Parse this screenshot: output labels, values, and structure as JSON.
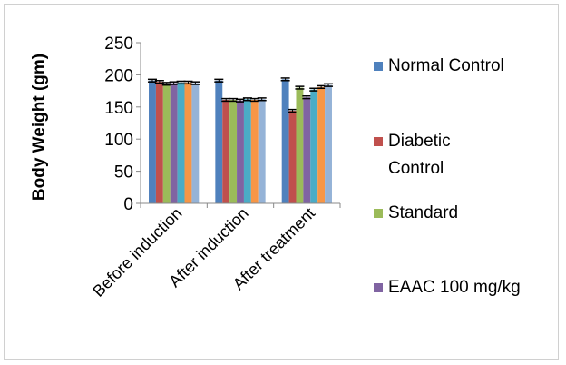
{
  "chart_data": {
    "type": "bar",
    "ylabel": "Body Weight (gm)",
    "ylim": [
      0,
      250
    ],
    "yticks": [
      0,
      50,
      100,
      150,
      200,
      250
    ],
    "categories": [
      "Before induction",
      "After induction",
      "After treatment"
    ],
    "legend_position": "right",
    "series": [
      {
        "name": "Normal Control",
        "color": "#4f81bd",
        "values": [
          191,
          191,
          193
        ],
        "errors": [
          2,
          2,
          2
        ]
      },
      {
        "name": "Diabetic Control",
        "color": "#c0504d",
        "values": [
          189,
          161,
          144
        ],
        "errors": [
          2,
          2,
          2
        ]
      },
      {
        "name": "Standard",
        "color": "#9bbb59",
        "values": [
          186,
          161,
          180
        ],
        "errors": [
          2,
          2,
          2
        ]
      },
      {
        "name": "EAAC 100 mg/kg",
        "color": "#8064a2",
        "values": [
          187,
          160,
          165
        ],
        "errors": [
          2,
          2,
          2
        ]
      },
      {
        "name": "",
        "color": "#4bacc6",
        "values": [
          188,
          162,
          177
        ],
        "errors": [
          2,
          2,
          2
        ]
      },
      {
        "name": "",
        "color": "#f79646",
        "values": [
          188,
          161,
          181
        ],
        "errors": [
          2,
          2,
          2
        ]
      },
      {
        "name": "",
        "color": "#95b3d7",
        "values": [
          187,
          162,
          184
        ],
        "errors": [
          2,
          2,
          2
        ]
      }
    ]
  }
}
